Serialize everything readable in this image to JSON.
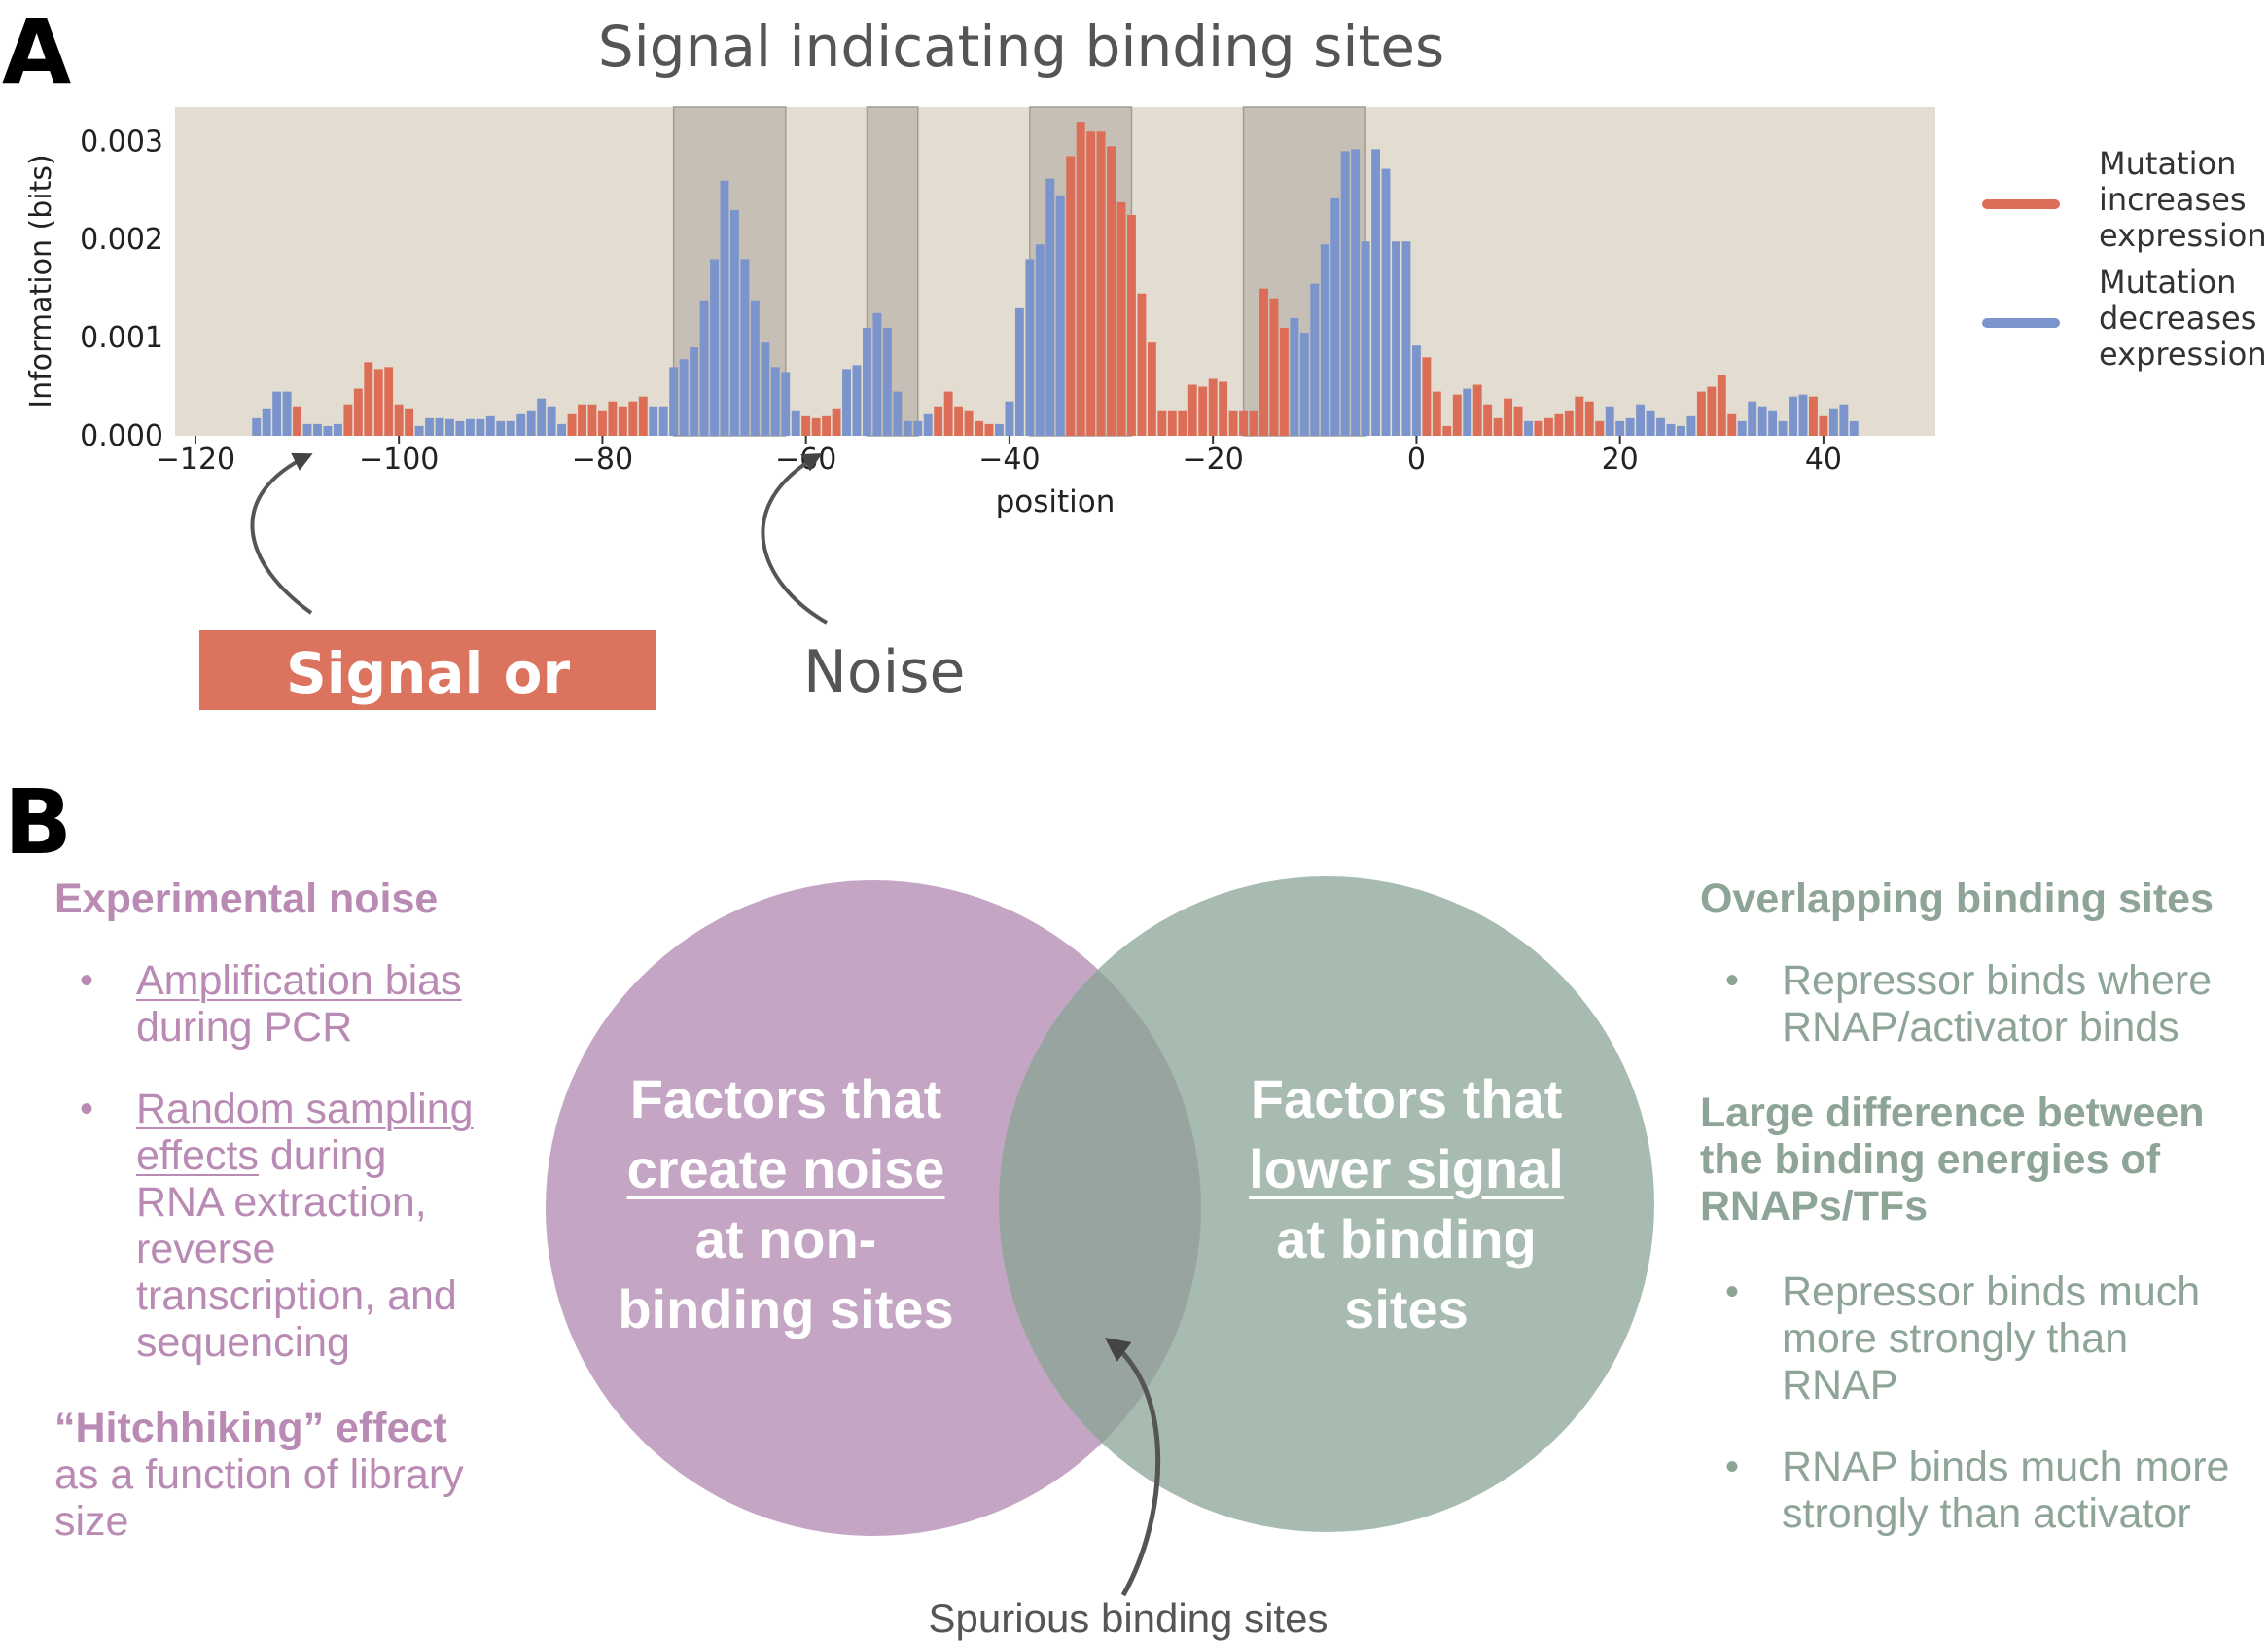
{
  "panel_a": {
    "letter": "A",
    "chart_data": {
      "type": "bar",
      "title": "Signal indicating binding sites",
      "xlabel": "position",
      "ylabel": "Information (bits)",
      "xlim": [
        -122,
        51
      ],
      "ylim": [
        0,
        0.00335
      ],
      "xticks": [
        -120,
        -100,
        -80,
        -60,
        -40,
        -20,
        0,
        20,
        40
      ],
      "xtick_labels": [
        "−120",
        "−100",
        "−80",
        "−60",
        "−40",
        "−20",
        "0",
        "20",
        "40"
      ],
      "yticks": [
        0,
        0.001,
        0.002,
        0.003
      ],
      "ytick_labels": [
        "0.000",
        "0.001",
        "0.002",
        "0.003"
      ],
      "background_color": "#e3ddd1",
      "shaded_regions": [
        [
          -73,
          -62
        ],
        [
          -54,
          -49
        ],
        [
          -38,
          -28
        ],
        [
          -17,
          -5
        ]
      ],
      "series": [
        {
          "name": "Mutation increases expression",
          "color": "#dc6e58"
        },
        {
          "name": "Mutation decreases expression",
          "color": "#7b95cc"
        }
      ],
      "positions": [
        -114,
        -113,
        -112,
        -111,
        -110,
        -109,
        -108,
        -107,
        -106,
        -105,
        -104,
        -103,
        -102,
        -101,
        -100,
        -99,
        -98,
        -97,
        -96,
        -95,
        -94,
        -93,
        -92,
        -91,
        -90,
        -89,
        -88,
        -87,
        -86,
        -85,
        -84,
        -83,
        -82,
        -81,
        -80,
        -79,
        -78,
        -77,
        -76,
        -75,
        -74,
        -73,
        -72,
        -71,
        -70,
        -69,
        -68,
        -67,
        -66,
        -65,
        -64,
        -63,
        -62,
        -61,
        -60,
        -59,
        -58,
        -57,
        -56,
        -55,
        -54,
        -53,
        -52,
        -51,
        -50,
        -49,
        -48,
        -47,
        -46,
        -45,
        -44,
        -43,
        -42,
        -41,
        -40,
        -39,
        -38,
        -37,
        -36,
        -35,
        -34,
        -33,
        -32,
        -31,
        -30,
        -29,
        -28,
        -27,
        -26,
        -25,
        -24,
        -23,
        -22,
        -21,
        -20,
        -19,
        -18,
        -17,
        -16,
        -15,
        -14,
        -13,
        -12,
        -11,
        -10,
        -9,
        -8,
        -7,
        -6,
        -5,
        -4,
        -3,
        -2,
        -1,
        0,
        1,
        2,
        3,
        4,
        5,
        6,
        7,
        8,
        9,
        10,
        11,
        12,
        13,
        14,
        15,
        16,
        17,
        18,
        19,
        20,
        21,
        22,
        23,
        24,
        25,
        26,
        27,
        28,
        29,
        30,
        31,
        32,
        33,
        34,
        35,
        36,
        37,
        38,
        39,
        40,
        41,
        42,
        43
      ],
      "values": [
        0.00018,
        0.00028,
        0.00045,
        0.00045,
        0.0003,
        0.00012,
        0.00012,
        0.0001,
        0.00012,
        0.00032,
        0.00048,
        0.00075,
        0.00068,
        0.0007,
        0.00032,
        0.00028,
        0.0001,
        0.00018,
        0.00018,
        0.00017,
        0.00015,
        0.00017,
        0.00017,
        0.0002,
        0.00015,
        0.00015,
        0.00022,
        0.00025,
        0.00038,
        0.0003,
        0.00012,
        0.00022,
        0.00032,
        0.00032,
        0.00025,
        0.00035,
        0.0003,
        0.00035,
        0.0004,
        0.0003,
        0.0003,
        0.0007,
        0.00078,
        0.0009,
        0.00138,
        0.0018,
        0.0026,
        0.0023,
        0.0018,
        0.00138,
        0.00095,
        0.0007,
        0.00065,
        0.00025,
        0.0002,
        0.00018,
        0.0002,
        0.00028,
        0.00068,
        0.00072,
        0.0011,
        0.00125,
        0.0011,
        0.00045,
        0.00015,
        0.00015,
        0.00022,
        0.0003,
        0.00045,
        0.0003,
        0.00025,
        0.00015,
        0.00012,
        0.00012,
        0.00035,
        0.0013,
        0.0018,
        0.00195,
        0.00262,
        0.00245,
        0.00285,
        0.0032,
        0.0031,
        0.0031,
        0.00295,
        0.00238,
        0.00225,
        0.00145,
        0.00095,
        0.00025,
        0.00025,
        0.00025,
        0.00052,
        0.0005,
        0.00058,
        0.00055,
        0.00025,
        0.00025,
        0.00025,
        0.0015,
        0.0014,
        0.0011,
        0.0012,
        0.00105,
        0.00155,
        0.00195,
        0.00242,
        0.0029,
        0.00292,
        0.00198,
        0.00292,
        0.00272,
        0.00198,
        0.00198,
        0.00092,
        0.0008,
        0.00045,
        0.0001,
        0.00042,
        0.00048,
        0.00052,
        0.00032,
        0.00018,
        0.00038,
        0.0003,
        0.00015,
        0.00015,
        0.00018,
        0.00022,
        0.00025,
        0.0004,
        0.00035,
        0.00015,
        0.0003,
        0.00015,
        0.00018,
        0.00032,
        0.00025,
        0.00018,
        0.00012,
        0.0001,
        0.0002,
        0.00045,
        0.0005,
        0.00062,
        0.00022,
        0.00015,
        0.00035,
        0.0003,
        0.00025,
        0.00015,
        0.0004,
        0.00042,
        0.0004,
        0.0002,
        0.00028,
        0.00032,
        0.00015,
        0.00012,
        0.00022,
        0.00035,
        0.00058,
        0.00048,
        0.00042,
        0.00018,
        0.0001,
        0.0001,
        5e-05
      ],
      "colors": [
        "b",
        "b",
        "b",
        "b",
        "r",
        "b",
        "b",
        "b",
        "b",
        "r",
        "r",
        "r",
        "r",
        "r",
        "r",
        "r",
        "b",
        "b",
        "b",
        "b",
        "b",
        "b",
        "b",
        "b",
        "b",
        "b",
        "b",
        "b",
        "b",
        "b",
        "b",
        "r",
        "r",
        "r",
        "r",
        "r",
        "r",
        "r",
        "r",
        "b",
        "b",
        "b",
        "b",
        "b",
        "b",
        "b",
        "b",
        "b",
        "b",
        "b",
        "b",
        "b",
        "b",
        "b",
        "r",
        "r",
        "r",
        "r",
        "b",
        "b",
        "b",
        "b",
        "b",
        "b",
        "b",
        "b",
        "b",
        "r",
        "r",
        "r",
        "r",
        "r",
        "r",
        "b",
        "b",
        "b",
        "b",
        "b",
        "b",
        "b",
        "r",
        "r",
        "r",
        "r",
        "r",
        "r",
        "r",
        "r",
        "r",
        "r",
        "r",
        "r",
        "r",
        "r",
        "r",
        "r",
        "r",
        "r",
        "r",
        "r",
        "r",
        "r",
        "b",
        "b",
        "b",
        "b",
        "b",
        "b",
        "b",
        "b",
        "b",
        "b",
        "b",
        "b",
        "b",
        "r",
        "r",
        "r",
        "r",
        "b",
        "r",
        "r",
        "r",
        "r",
        "r",
        "b",
        "r",
        "r",
        "r",
        "r",
        "r",
        "r",
        "r",
        "b",
        "b",
        "b",
        "b",
        "b",
        "b",
        "b",
        "b",
        "b",
        "r",
        "r",
        "r",
        "r",
        "b",
        "b",
        "b",
        "b",
        "b",
        "b",
        "b",
        "r",
        "r",
        "b",
        "b",
        "b",
        "b",
        "b",
        "b",
        "b",
        "b",
        "b"
      ],
      "legend_position": "right",
      "grid": false
    },
    "legend": [
      {
        "lines": [
          "Mutation",
          "increases",
          "expression"
        ],
        "color": "#dc6e58"
      },
      {
        "lines": [
          "Mutation",
          "decreases",
          "expression"
        ],
        "color": "#7b95cc"
      }
    ],
    "signal_or_noise": "Signal or noise?",
    "noise": "Noise"
  },
  "panel_b": {
    "letter": "B",
    "left": {
      "heading": "Experimental noise",
      "bullet1_link": "Amplification bias",
      "bullet1_rest": "during PCR",
      "bullet2_link_a": "Random sampling",
      "bullet2_link_b": "effects",
      "bullet2_rest_a": " during",
      "bullet2_rest_b": "RNA extraction,",
      "bullet2_rest_c": "reverse",
      "bullet2_rest_d": "transcription, and",
      "bullet2_rest_e": "sequencing",
      "hitch_bold": "“Hitchhiking” effect",
      "hitch_rest_a": "as a function of library",
      "hitch_rest_b": "size",
      "bullet_char": "•"
    },
    "right": {
      "heading1": "Overlapping binding sites",
      "r_bullet1_a": "Repressor binds where",
      "r_bullet1_b": "RNAP/activator binds",
      "heading2_a": "Large difference between",
      "heading2_b": "the binding energies of",
      "heading2_c": "RNAPs/TFs",
      "r_bullet2_a": "Repressor binds much",
      "r_bullet2_b": "more strongly than",
      "r_bullet2_c": "RNAP",
      "r_bullet3_a": "RNAP binds much more",
      "r_bullet3_b": "strongly than activator",
      "bullet_char": "•"
    },
    "venn": {
      "left_line1": "Factors that",
      "left_line2": "create noise",
      "left_line3": "at non-",
      "left_line4": "binding sites",
      "right_line1": "Factors that",
      "right_line2": "lower signal",
      "right_line3": "at binding",
      "right_line4": "sites",
      "left_color": "#c4a6c4",
      "right_color": "#a7bbb1",
      "overlap_color": "#97a4a0"
    },
    "spurious": "Spurious binding sites"
  }
}
